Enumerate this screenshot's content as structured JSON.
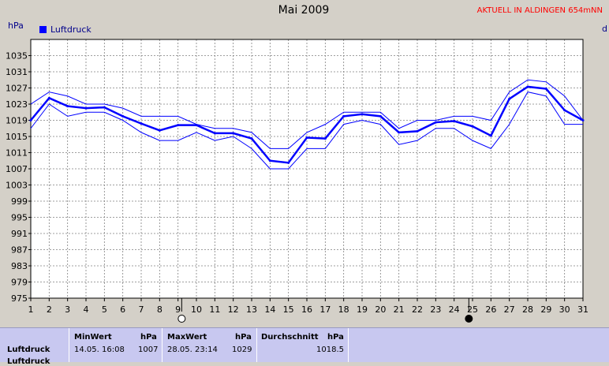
{
  "header": {
    "title": "Mai 2009",
    "aktuell": "AKTUELL IN ALDINGEN 654mNN",
    "unit_left": "hPa",
    "unit_right": "d"
  },
  "chart_data": {
    "type": "line",
    "ylabel": "hPa",
    "ylim": [
      975,
      1039
    ],
    "yticks": [
      975,
      979,
      983,
      987,
      991,
      995,
      999,
      1003,
      1007,
      1011,
      1015,
      1019,
      1023,
      1027,
      1031,
      1035
    ],
    "x": [
      1,
      2,
      3,
      4,
      5,
      6,
      7,
      8,
      9,
      10,
      11,
      12,
      13,
      14,
      15,
      16,
      17,
      18,
      19,
      20,
      21,
      22,
      23,
      24,
      25,
      26,
      27,
      28,
      29,
      30,
      31
    ],
    "xlim": [
      1,
      31
    ],
    "grid": true,
    "legend_position": "top-left",
    "series": [
      {
        "name": "Luftdruck",
        "role": "mean",
        "color": "#0000ff",
        "values": [
          1019,
          1024.5,
          1022.5,
          1022,
          1022.2,
          1020,
          1018.2,
          1016.5,
          1017.8,
          1017.8,
          1015.8,
          1015.8,
          1014.5,
          1009,
          1008.5,
          1014.7,
          1014.5,
          1020,
          1020.5,
          1020,
          1016,
          1016.3,
          1018.5,
          1018.8,
          1017.5,
          1015.2,
          1024.3,
          1027.3,
          1026.8,
          1021.5,
          1019
        ]
      },
      {
        "role": "max",
        "color": "#0000ff",
        "values": [
          1023,
          1026,
          1025,
          1023,
          1023,
          1022,
          1020,
          1020,
          1020,
          1018,
          1017,
          1017,
          1016,
          1012,
          1012,
          1016,
          1018,
          1021,
          1021,
          1021,
          1017,
          1019,
          1019,
          1020,
          1020,
          1019,
          1026,
          1029,
          1028.5,
          1025,
          1019
        ]
      },
      {
        "role": "min",
        "color": "#0000ff",
        "values": [
          1017,
          1023,
          1020,
          1021,
          1021,
          1019,
          1016,
          1014,
          1014,
          1016,
          1014,
          1015,
          1012,
          1007,
          1007,
          1012,
          1012,
          1018,
          1019,
          1018,
          1013,
          1014,
          1017,
          1017,
          1014,
          1012,
          1018,
          1026,
          1025,
          1018,
          1018
        ]
      }
    ],
    "moon_phases": [
      {
        "day": 9.2,
        "phase": "full",
        "color": "#ffffff"
      },
      {
        "day": 24.8,
        "phase": "new",
        "color": "#000000"
      }
    ],
    "colors": {
      "plot_bg": "#ffffff",
      "grid": "#808080",
      "line": "#0000ff"
    }
  },
  "stats": {
    "row_label": "Luftdruck",
    "row_label_2": "Luftdruck",
    "min": {
      "label": "MinWert",
      "unit": "hPa",
      "time": "14.05.  16:08",
      "value": "1007"
    },
    "max": {
      "label": "MaxWert",
      "unit": "hPa",
      "time": "28.05.  23:14",
      "value": "1029"
    },
    "avg": {
      "label": "Durchschnitt",
      "unit": "hPa",
      "value": "1018.5"
    }
  }
}
